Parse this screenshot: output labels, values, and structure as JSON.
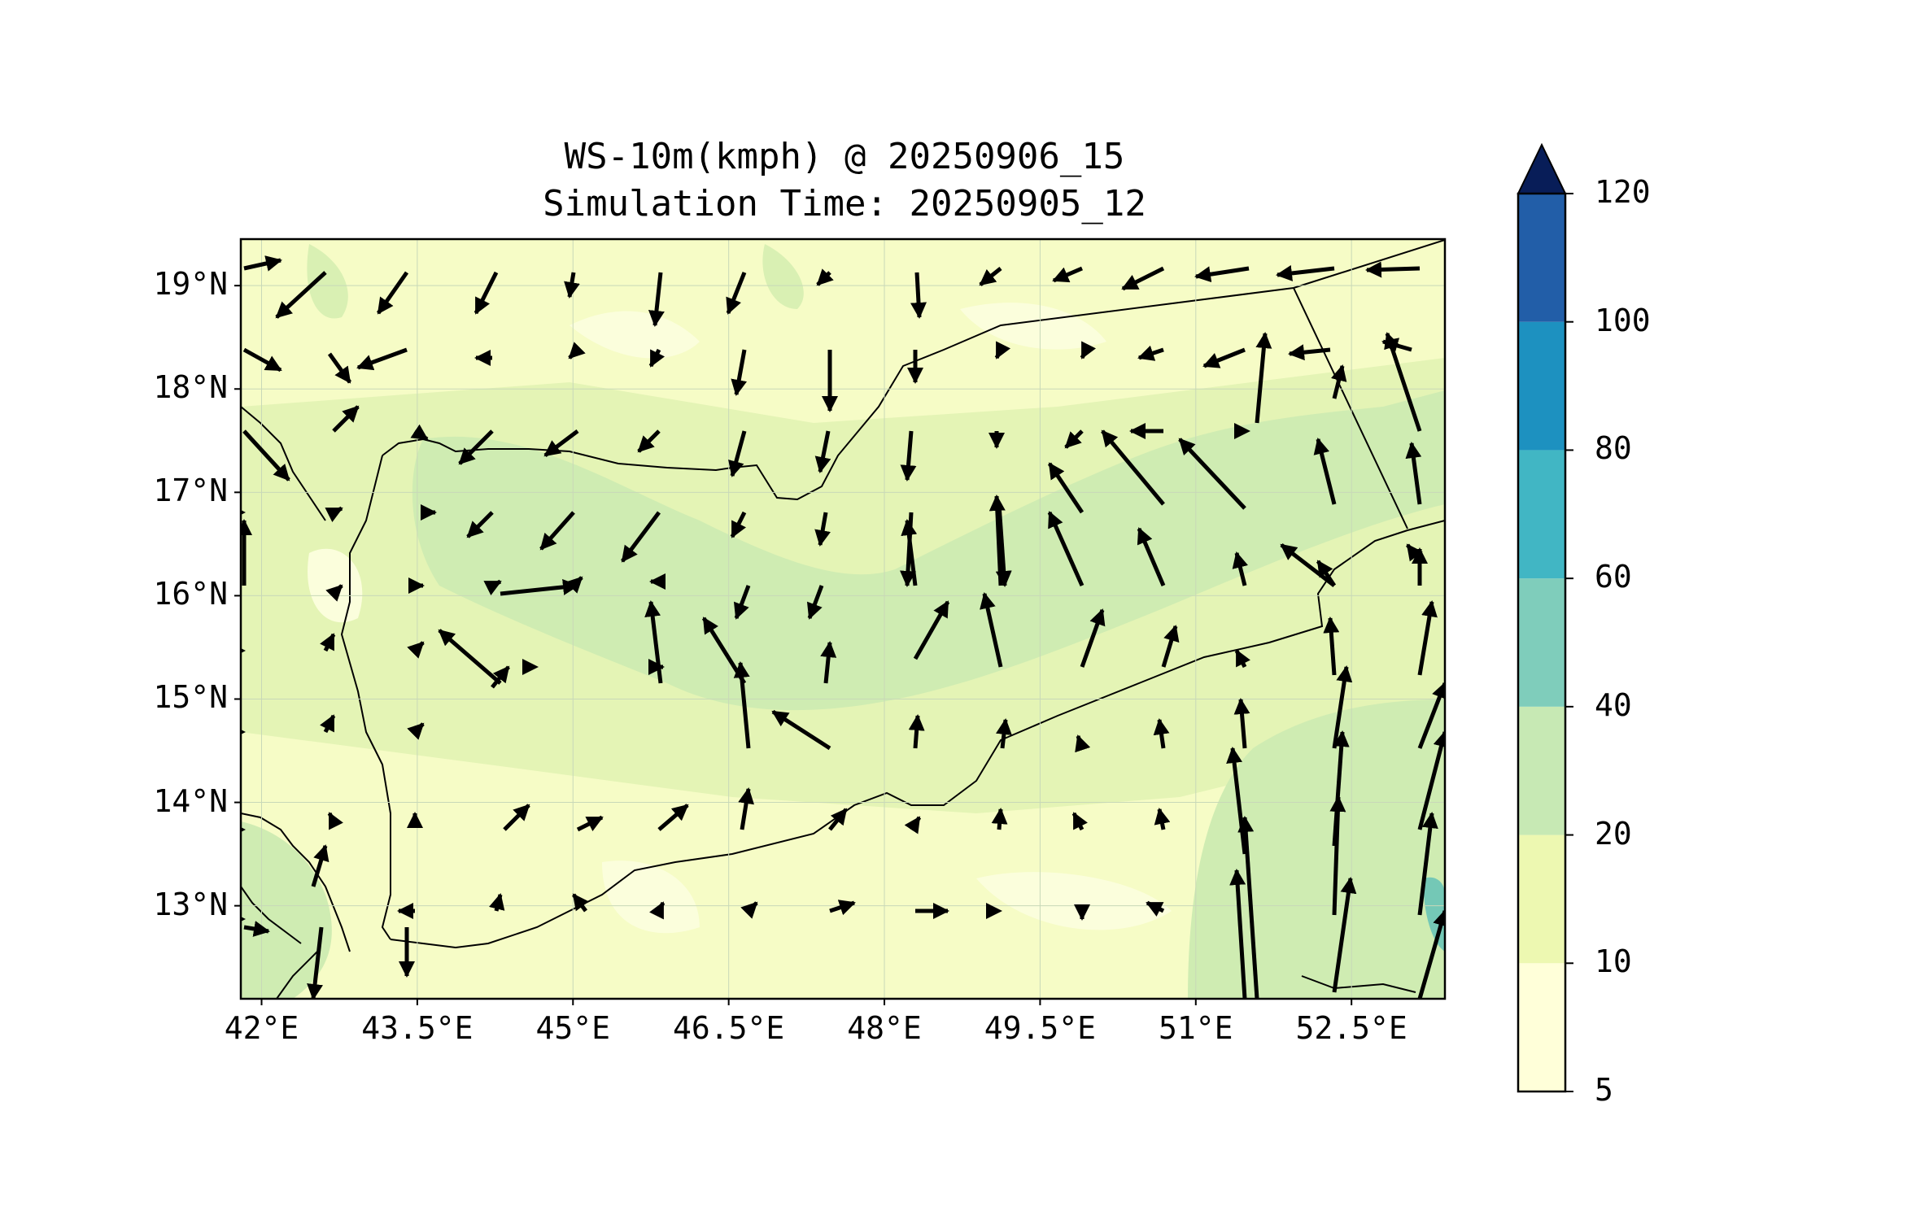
{
  "title": {
    "line1": "WS-10m(kmph) @ 20250906_15",
    "line2": "Simulation Time: 20250905_12"
  },
  "map": {
    "region": "Yemen",
    "extent_lon": [
      41.8,
      53.4
    ],
    "extent_lat": [
      12.1,
      19.45
    ],
    "lat_ticks": [
      {
        "value": 19,
        "label": "19°N"
      },
      {
        "value": 18,
        "label": "18°N"
      },
      {
        "value": 17,
        "label": "17°N"
      },
      {
        "value": 16,
        "label": "16°N"
      },
      {
        "value": 15,
        "label": "15°N"
      },
      {
        "value": 14,
        "label": "14°N"
      },
      {
        "value": 13,
        "label": "13°N"
      }
    ],
    "lon_ticks": [
      {
        "value": 42,
        "label": "42°E"
      },
      {
        "value": 43.5,
        "label": "43.5°E"
      },
      {
        "value": 45,
        "label": "45°E"
      },
      {
        "value": 46.5,
        "label": "46.5°E"
      },
      {
        "value": 48,
        "label": "48°E"
      },
      {
        "value": 49.5,
        "label": "49.5°E"
      },
      {
        "value": 51,
        "label": "51°E"
      },
      {
        "value": 52.5,
        "label": "52.5°E"
      }
    ]
  },
  "colorbar": {
    "levels": [
      "5",
      "10",
      "20",
      "40",
      "60",
      "80",
      "100",
      "120"
    ],
    "colors": [
      "#ffffd9",
      "#edf8b1",
      "#c7e9b4",
      "#7fcdbb",
      "#41b6c4",
      "#1d91c0",
      "#225ea8",
      "#0c2c84"
    ],
    "extend_color": "#081d58",
    "extend": "max"
  }
}
